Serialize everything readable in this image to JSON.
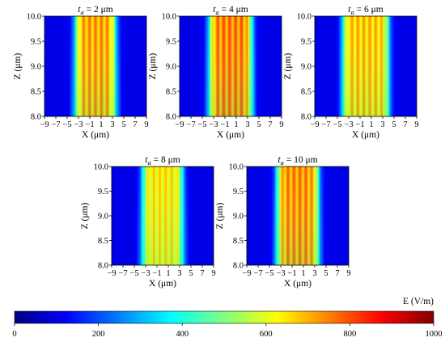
{
  "chart_data": [
    {
      "type": "heatmap",
      "title_var": "t",
      "title_sub": "a",
      "title_rest": " = 2 μm",
      "xlabel": "X (μm)",
      "ylabel": "Z (μm)",
      "xticks": [
        "−9",
        "−7",
        "−5",
        "−3",
        "−1",
        "1",
        "3",
        "5",
        "7",
        "9"
      ],
      "yticks": [
        "8.0",
        "8.5",
        "9.0",
        "9.5",
        "10.0"
      ],
      "xlim": [
        -9,
        9
      ],
      "ylim": [
        8.0,
        10.0
      ],
      "peak_field_V_per_m": 780,
      "beam_half_width_um": 3.5
    },
    {
      "type": "heatmap",
      "title_var": "t",
      "title_sub": "a",
      "title_rest": " = 4 μm",
      "xlabel": "X (μm)",
      "ylabel": "Z (μm)",
      "xticks": [
        "−9",
        "−7",
        "−5",
        "−3",
        "−1",
        "1",
        "3",
        "5",
        "7",
        "9"
      ],
      "yticks": [
        "8.0",
        "8.5",
        "9.0",
        "9.5",
        "10.0"
      ],
      "xlim": [
        -9,
        9
      ],
      "ylim": [
        8.0,
        10.0
      ],
      "peak_field_V_per_m": 820,
      "beam_half_width_um": 3.7
    },
    {
      "type": "heatmap",
      "title_var": "t",
      "title_sub": "a",
      "title_rest": " = 6 μm",
      "xlabel": "X (μm)",
      "ylabel": "Z (μm)",
      "xticks": [
        "−9",
        "−7",
        "−5",
        "−3",
        "−1",
        "1",
        "3",
        "5",
        "7",
        "9"
      ],
      "yticks": [
        "8.0",
        "8.5",
        "9.0",
        "9.5",
        "10.0"
      ],
      "xlim": [
        -9,
        9
      ],
      "ylim": [
        8.0,
        10.0
      ],
      "peak_field_V_per_m": 740,
      "beam_half_width_um": 4.0
    },
    {
      "type": "heatmap",
      "title_var": "t",
      "title_sub": "a",
      "title_rest": " = 8 μm",
      "xlabel": "X (μm)",
      "ylabel": "Z (μm)",
      "xticks": [
        "−9",
        "−7",
        "−5",
        "−3",
        "−1",
        "1",
        "3",
        "5",
        "7",
        "9"
      ],
      "yticks": [
        "8.0",
        "8.5",
        "9.0",
        "9.5",
        "10.0"
      ],
      "xlim": [
        -9,
        9
      ],
      "ylim": [
        8.0,
        10.0
      ],
      "peak_field_V_per_m": 700,
      "beam_half_width_um": 3.5
    },
    {
      "type": "heatmap",
      "title_var": "t",
      "title_sub": "a",
      "title_rest": " = 10 μm",
      "xlabel": "X (μm)",
      "ylabel": "Z (μm)",
      "xticks": [
        "−9",
        "−7",
        "−5",
        "−3",
        "−1",
        "1",
        "3",
        "5",
        "7",
        "9"
      ],
      "yticks": [
        "8.0",
        "8.5",
        "9.0",
        "9.5",
        "10.0"
      ],
      "xlim": [
        -9,
        9
      ],
      "ylim": [
        8.0,
        10.0
      ],
      "peak_field_V_per_m": 800,
      "beam_half_width_um": 3.6
    }
  ],
  "colorbar": {
    "label": "E (V/m)",
    "ticks": [
      "0",
      "200",
      "400",
      "600",
      "800",
      "1000"
    ],
    "range": [
      0,
      1000
    ],
    "colormap": "jet",
    "colors": [
      "#00008f",
      "#0000ff",
      "#00ffff",
      "#ffff00",
      "#ff0000",
      "#800000"
    ]
  }
}
